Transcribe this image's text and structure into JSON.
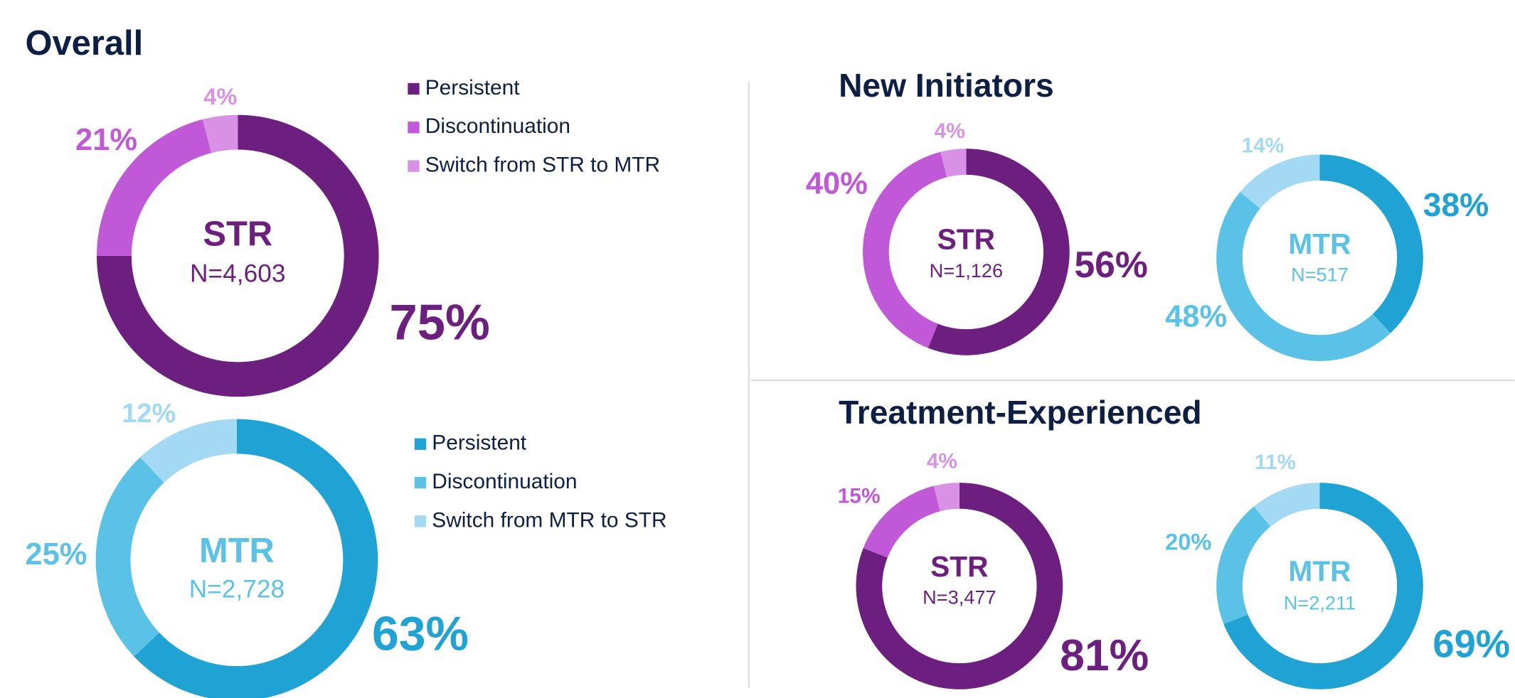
{
  "headings": [
    "Overall",
    "New Initiators",
    "Treatment-Experienced"
  ],
  "chart_data": [
    {
      "type": "pie",
      "title": "STR",
      "subtitle": "N=4,603",
      "categories": [
        "Persistent",
        "Discontinuation",
        "Switch from STR to MTR"
      ],
      "values": [
        75,
        21,
        4
      ],
      "value_labels": [
        "75%",
        "21%",
        "4%"
      ],
      "colors": [
        "#6d1f80",
        "#c158d8",
        "#d991e6"
      ],
      "legend": true
    },
    {
      "type": "pie",
      "title": "MTR",
      "subtitle": "N=2,728",
      "categories": [
        "Persistent",
        "Discontinuation",
        "Switch from MTR to STR"
      ],
      "values": [
        63,
        25,
        12
      ],
      "value_labels": [
        "63%",
        "25%",
        "12%"
      ],
      "colors": [
        "#1fa3d4",
        "#5bc2e7",
        "#a3d9f2"
      ],
      "legend": true
    },
    {
      "type": "pie",
      "title": "STR",
      "subtitle": "N=1,126",
      "values": [
        56,
        40,
        4
      ],
      "value_labels": [
        "56%",
        "40%",
        "4%"
      ],
      "colors": [
        "#6d1f80",
        "#c158d8",
        "#d991e6"
      ]
    },
    {
      "type": "pie",
      "title": "MTR",
      "subtitle": "N=517",
      "values": [
        38,
        48,
        14
      ],
      "value_labels": [
        "38%",
        "48%",
        "14%"
      ],
      "colors": [
        "#1fa3d4",
        "#5bc2e7",
        "#a3d9f2"
      ]
    },
    {
      "type": "pie",
      "title": "STR",
      "subtitle": "N=3,477",
      "values": [
        81,
        15,
        4
      ],
      "value_labels": [
        "81%",
        "15%",
        "4%"
      ],
      "colors": [
        "#6d1f80",
        "#c158d8",
        "#d991e6"
      ]
    },
    {
      "type": "pie",
      "title": "MTR",
      "subtitle": "N=2,211",
      "values": [
        69,
        20,
        11
      ],
      "value_labels": [
        "69%",
        "20%",
        "11%"
      ],
      "colors": [
        "#1fa3d4",
        "#5bc2e7",
        "#a3d9f2"
      ]
    }
  ]
}
